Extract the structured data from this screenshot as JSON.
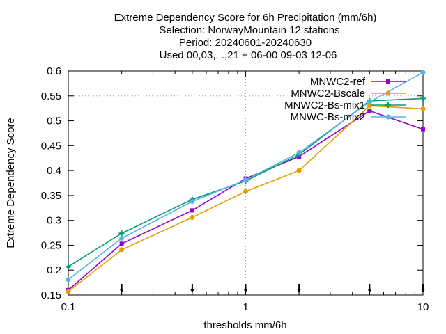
{
  "chart_data": {
    "type": "line",
    "title_lines": [
      "Extreme Dependency Score  for 6h Precipitation (mm/6h)",
      "Selection: NorwayMountain     12 stations",
      "Period: 20240601-20240630",
      "Used 00,03,...,21 + 06-00 09-03 12-06"
    ],
    "xlabel": "thresholds mm/6h",
    "ylabel": "Extreme Dependency Score",
    "x_scale": "log",
    "xlim": [
      0.1,
      10
    ],
    "ylim": [
      0.15,
      0.6
    ],
    "x_ticks": [
      0.1,
      1,
      10
    ],
    "x_tick_labels": [
      "0.1",
      "1",
      "10"
    ],
    "y_ticks": [
      0.15,
      0.2,
      0.25,
      0.3,
      0.35,
      0.4,
      0.45,
      0.5,
      0.55,
      0.6
    ],
    "y_tick_labels": [
      "0.15",
      "0.2",
      "0.25",
      "0.3",
      "0.35",
      "0.4",
      "0.45",
      "0.5",
      "0.55",
      "0.6"
    ],
    "grid": "x=1 and y=0.55 only, dotted",
    "legend_position": "top-right",
    "threshold_markers_x": [
      0.2,
      0.5,
      1,
      2,
      5,
      10
    ],
    "x": [
      0.1,
      0.2,
      0.5,
      1,
      2,
      5,
      10
    ],
    "series": [
      {
        "name": "MNWC2-ref",
        "color": "#9400d3",
        "marker": "square",
        "values": [
          0.16,
          0.253,
          0.32,
          0.384,
          0.428,
          0.52,
          0.483
        ]
      },
      {
        "name": "MNWC2-Bscale",
        "color": "#e69f00",
        "marker": "circle",
        "values": [
          0.157,
          0.241,
          0.306,
          0.358,
          0.4,
          0.53,
          0.524
        ]
      },
      {
        "name": "MNWC2-Bs-mix1",
        "color": "#009e73",
        "marker": "cross",
        "values": [
          0.207,
          0.274,
          0.342,
          0.379,
          0.432,
          0.54,
          0.545
        ]
      },
      {
        "name": "MNWC-Bs-mix2",
        "color": "#56b4e9",
        "marker": "circle",
        "values": [
          0.181,
          0.264,
          0.338,
          0.381,
          0.436,
          0.538,
          0.597
        ]
      }
    ]
  }
}
